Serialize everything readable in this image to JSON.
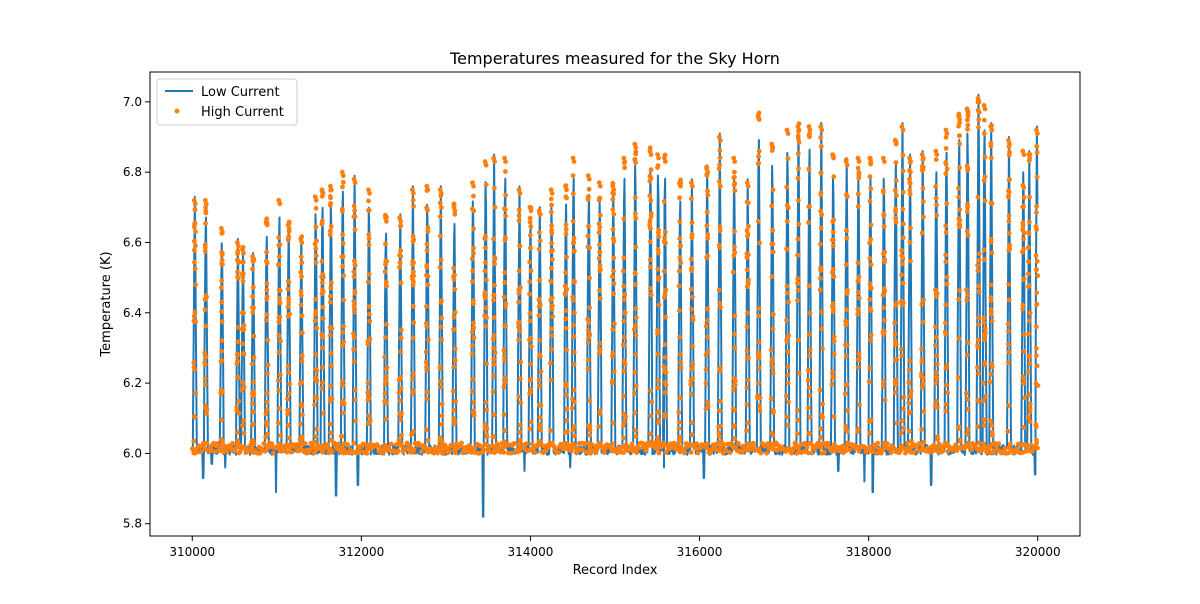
{
  "chart_data": {
    "type": "line",
    "title": "Temperatures measured for the Sky Horn",
    "xlabel": "Record Index",
    "ylabel": "Temperature (K)",
    "xlim": [
      309500,
      320500
    ],
    "ylim": [
      5.765,
      7.085
    ],
    "x_ticks": [
      310000,
      312000,
      314000,
      316000,
      318000,
      320000
    ],
    "y_ticks": [
      5.8,
      6.0,
      6.2,
      6.4,
      6.6,
      6.8,
      7.0
    ],
    "x_tick_labels": [
      "310000",
      "312000",
      "314000",
      "316000",
      "318000",
      "320000"
    ],
    "y_tick_labels": [
      "5.8",
      "6.0",
      "6.2",
      "6.4",
      "6.6",
      "6.8",
      "7.0"
    ],
    "legend_position": "top-left",
    "grid": false,
    "baseline": 6.01,
    "series": [
      {
        "name": "Low Current",
        "style": "line",
        "color": "#1f77b4",
        "spike_x": [
          310030,
          310160,
          310350,
          310540,
          310600,
          310720,
          310880,
          311030,
          311140,
          311290,
          311460,
          311540,
          311640,
          311780,
          311920,
          312090,
          312290,
          312460,
          312610,
          312780,
          312940,
          313100,
          313320,
          313470,
          313570,
          313700,
          313870,
          314000,
          314110,
          314250,
          314420,
          314510,
          314690,
          314820,
          314980,
          315110,
          315240,
          315420,
          315510,
          315590,
          315770,
          315910,
          316090,
          316240,
          316410,
          316570,
          316700,
          316860,
          317040,
          317170,
          317300,
          317440,
          317580,
          317740,
          317880,
          318020,
          318180,
          318320,
          318400,
          318490,
          318640,
          318800,
          318920,
          319070,
          319170,
          319300,
          319370,
          319450,
          319660,
          319830,
          319900,
          319990
        ],
        "spike_peak": [
          6.73,
          6.73,
          6.65,
          6.61,
          6.59,
          6.57,
          6.67,
          6.73,
          6.66,
          6.62,
          6.74,
          6.76,
          6.77,
          6.81,
          6.79,
          6.76,
          6.68,
          6.68,
          6.76,
          6.77,
          6.76,
          6.71,
          6.78,
          6.84,
          6.85,
          6.85,
          6.76,
          6.71,
          6.7,
          6.76,
          6.77,
          6.85,
          6.8,
          6.78,
          6.77,
          6.85,
          6.89,
          6.87,
          6.86,
          6.85,
          6.78,
          6.78,
          6.82,
          6.91,
          6.85,
          6.78,
          6.97,
          6.89,
          6.93,
          6.94,
          6.94,
          6.94,
          6.86,
          6.84,
          6.85,
          6.85,
          6.85,
          6.9,
          6.94,
          6.85,
          6.86,
          6.87,
          6.93,
          6.97,
          6.99,
          7.02,
          7.0,
          6.94,
          6.9,
          6.87,
          6.86,
          6.93
        ],
        "dips_x": [
          310130,
          310230,
          310390,
          310990,
          311700,
          311960,
          313440,
          313930,
          314470,
          315580,
          316050,
          317640,
          317950,
          318050,
          318740,
          319970
        ],
        "dips_y": [
          5.93,
          5.97,
          5.96,
          5.89,
          5.88,
          5.91,
          5.82,
          5.95,
          5.96,
          5.96,
          5.93,
          5.95,
          5.92,
          5.89,
          5.91,
          5.94
        ]
      },
      {
        "name": "High Current",
        "style": "scatter",
        "color": "#ff7f0e",
        "points_per_spike": 24
      }
    ]
  },
  "legend": {
    "items": [
      {
        "label": "Low Current",
        "color": "#1f77b4",
        "marker": "line"
      },
      {
        "label": "High Current",
        "color": "#ff7f0e",
        "marker": "dot"
      }
    ]
  }
}
